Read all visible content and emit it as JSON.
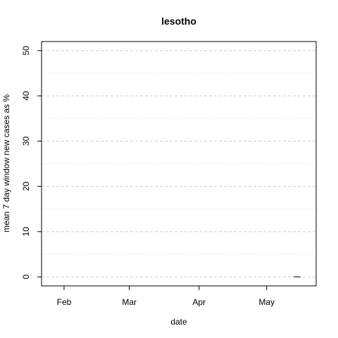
{
  "chart_data": {
    "type": "line",
    "title": "lesotho",
    "xlabel": "date",
    "ylabel": "mean  7  day window new cases as %",
    "x_axis": "date",
    "xlim": [
      "2020-01-22",
      "2020-05-23"
    ],
    "ylim": [
      -2,
      52
    ],
    "x_ticks": [
      {
        "date": "2020-02-01",
        "label": "Feb"
      },
      {
        "date": "2020-03-01",
        "label": "Mar"
      },
      {
        "date": "2020-04-01",
        "label": "Apr"
      },
      {
        "date": "2020-05-01",
        "label": "May"
      }
    ],
    "y_ticks": [
      0,
      10,
      20,
      30,
      40,
      50
    ],
    "y_minor_grid": [
      5,
      15,
      25,
      35,
      45
    ],
    "grid": true,
    "series": [
      {
        "x": [
          "2020-05-13",
          "2020-05-14",
          "2020-05-15",
          "2020-05-16"
        ],
        "values": [
          0,
          0,
          0,
          0
        ],
        "color": "#000000"
      }
    ]
  }
}
